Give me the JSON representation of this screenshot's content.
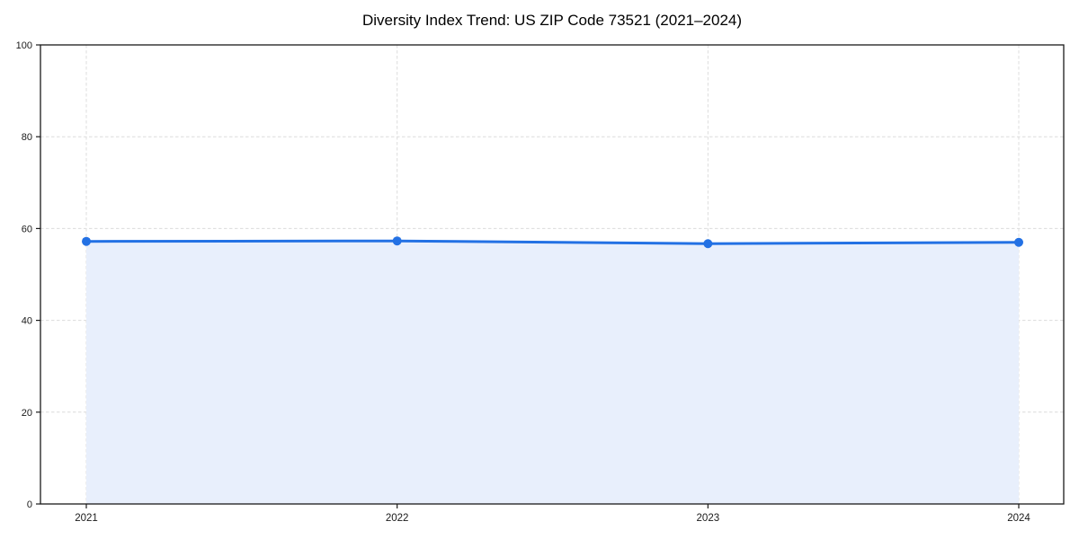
{
  "chart_data": {
    "type": "line",
    "title": "Diversity Index Trend: US ZIP Code 73521 (2021–2024)",
    "x": [
      "2021",
      "2022",
      "2023",
      "2024"
    ],
    "series": [
      {
        "name": "Diversity Index",
        "values": [
          57.2,
          57.3,
          56.7,
          57.0
        ]
      }
    ],
    "xlabel": "",
    "ylabel": "",
    "ylim": [
      0,
      100
    ],
    "yticks": [
      0,
      20,
      40,
      60,
      80,
      100
    ],
    "grid": true,
    "grid_style": "dashed",
    "legend": "none",
    "area_fill": true,
    "marker": "circle",
    "colors": {
      "line": "#2371e4",
      "marker": "#2371e4",
      "area_fill": "#e8effc",
      "grid": "#dcdcdc",
      "axis": "#1a1a1a",
      "tick_label": "#1a1a1a",
      "title": "#000000",
      "background": "#ffffff"
    }
  }
}
